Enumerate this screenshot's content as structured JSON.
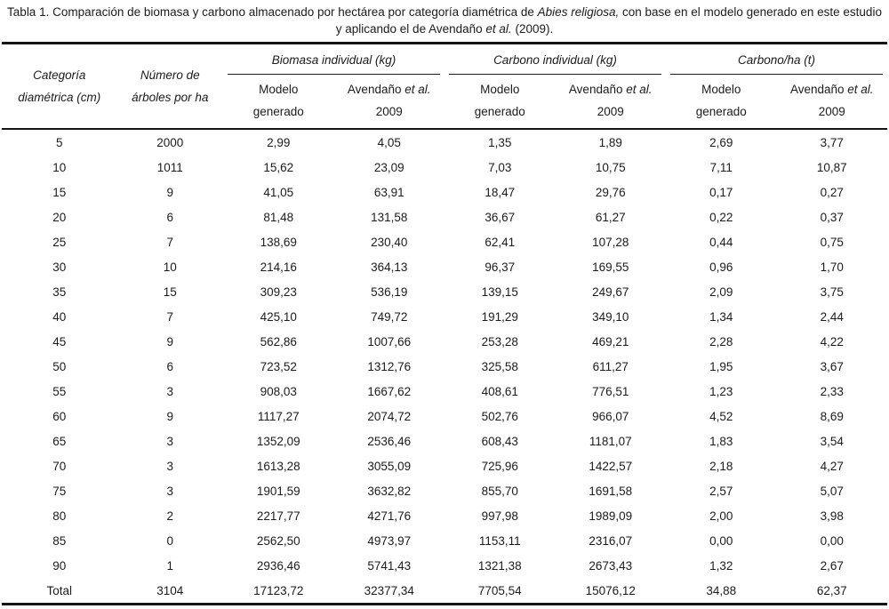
{
  "caption": {
    "part1": "Tabla 1. Comparación de biomasa y carbono almacenado por hectárea por categoría diamétrica de",
    "italic1": "Abies religiosa,",
    "part2": "con base en el modelo generado en este estudio y aplicando el de Avendaño",
    "italic2": "et al.",
    "part3": "(2009)."
  },
  "table": {
    "col_headers": {
      "category_line1": "Categoría",
      "category_line2": "diamétrica (cm)",
      "trees_line1": "Número de",
      "trees_line2": "árboles por ha",
      "groups": [
        {
          "label": "Biomasa individual (kg)"
        },
        {
          "label": "Carbono individual (kg)"
        },
        {
          "label": "Carbono/ha (t)"
        }
      ],
      "sub_model_line1": "Modelo",
      "sub_model_line2": "generado",
      "sub_avendano_pre": "Avendaño",
      "sub_avendano_italic": "et al.",
      "sub_avendano_line2": "2009"
    },
    "rows": [
      [
        "5",
        "2000",
        "2,99",
        "4,05",
        "1,35",
        "1,89",
        "2,69",
        "3,77"
      ],
      [
        "10",
        "1011",
        "15,62",
        "23,09",
        "7,03",
        "10,75",
        "7,11",
        "10,87"
      ],
      [
        "15",
        "9",
        "41,05",
        "63,91",
        "18,47",
        "29,76",
        "0,17",
        "0,27"
      ],
      [
        "20",
        "6",
        "81,48",
        "131,58",
        "36,67",
        "61,27",
        "0,22",
        "0,37"
      ],
      [
        "25",
        "7",
        "138,69",
        "230,40",
        "62,41",
        "107,28",
        "0,44",
        "0,75"
      ],
      [
        "30",
        "10",
        "214,16",
        "364,13",
        "96,37",
        "169,55",
        "0,96",
        "1,70"
      ],
      [
        "35",
        "15",
        "309,23",
        "536,19",
        "139,15",
        "249,67",
        "2,09",
        "3,75"
      ],
      [
        "40",
        "7",
        "425,10",
        "749,72",
        "191,29",
        "349,10",
        "1,34",
        "2,44"
      ],
      [
        "45",
        "9",
        "562,86",
        "1007,66",
        "253,28",
        "469,21",
        "2,28",
        "4,22"
      ],
      [
        "50",
        "6",
        "723,52",
        "1312,76",
        "325,58",
        "611,27",
        "1,95",
        "3,67"
      ],
      [
        "55",
        "3",
        "908,03",
        "1667,62",
        "408,61",
        "776,51",
        "1,23",
        "2,33"
      ],
      [
        "60",
        "9",
        "1117,27",
        "2074,72",
        "502,76",
        "966,07",
        "4,52",
        "8,69"
      ],
      [
        "65",
        "3",
        "1352,09",
        "2536,46",
        "608,43",
        "1181,07",
        "1,83",
        "3,54"
      ],
      [
        "70",
        "3",
        "1613,28",
        "3055,09",
        "725,96",
        "1422,57",
        "2,18",
        "4,27"
      ],
      [
        "75",
        "3",
        "1901,59",
        "3632,82",
        "855,70",
        "1691,58",
        "2,57",
        "5,07"
      ],
      [
        "80",
        "2",
        "2217,77",
        "4271,76",
        "997,98",
        "1989,09",
        "2,00",
        "3,98"
      ],
      [
        "85",
        "0",
        "2562,50",
        "4973,97",
        "1153,11",
        "2316,07",
        "0,00",
        "0,00"
      ],
      [
        "90",
        "1",
        "2936,46",
        "5741,43",
        "1321,38",
        "2673,43",
        "1,32",
        "2,67"
      ]
    ],
    "total_row": [
      "Total",
      "3104",
      "17123,72",
      "32377,34",
      "7705,54",
      "15076,12",
      "34,88",
      "62,37"
    ]
  }
}
